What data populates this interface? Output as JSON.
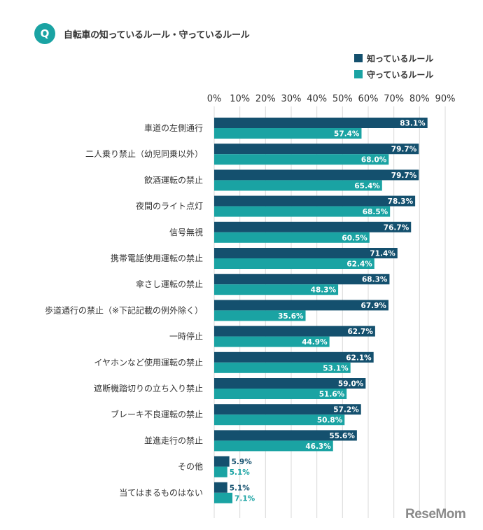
{
  "header": {
    "q_badge": "Q",
    "title": "自転車の知っているルール・守っているルール"
  },
  "watermark": "ReseMom",
  "colors": {
    "series_known": "#14506e",
    "series_followed": "#1aa3a3",
    "grid": "#d9d9d9",
    "text": "#333333"
  },
  "chart_data": {
    "type": "bar",
    "orientation": "horizontal",
    "title": "自転車の知っているルール・守っているルール",
    "categories": [
      "車道の左側通行",
      "二人乗り禁止（幼児同乗以外）",
      "飲酒運転の禁止",
      "夜間のライト点灯",
      "信号無視",
      "携帯電話使用運転の禁止",
      "傘さし運転の禁止",
      "歩道通行の禁止（※下記記載の例外除く）",
      "一時停止",
      "イヤホンなど使用運転の禁止",
      "遮断機踏切りの立ち入り禁止",
      "ブレーキ不良運転の禁止",
      "並進走行の禁止",
      "その他",
      "当てはまるものはない"
    ],
    "series": [
      {
        "name": "知っているルール",
        "values": [
          83.1,
          79.7,
          79.7,
          78.3,
          76.7,
          71.4,
          68.3,
          67.9,
          62.7,
          62.1,
          59.0,
          57.2,
          55.6,
          5.9,
          5.1
        ]
      },
      {
        "name": "守っているルール",
        "values": [
          57.4,
          68.0,
          65.4,
          68.5,
          60.5,
          62.4,
          48.3,
          35.6,
          44.9,
          53.1,
          51.6,
          50.8,
          46.3,
          5.1,
          7.1
        ]
      }
    ],
    "xlim": [
      0,
      90
    ],
    "ticks": [
      0,
      10,
      20,
      30,
      40,
      50,
      60,
      70,
      80,
      90
    ],
    "tick_labels": [
      "0%",
      "10%",
      "20%",
      "30%",
      "40%",
      "50%",
      "60%",
      "70%",
      "80%",
      "90%"
    ],
    "value_labels": [
      [
        "83.1%",
        "79.7%",
        "79.7%",
        "78.3%",
        "76.7%",
        "71.4%",
        "68.3%",
        "67.9%",
        "62.7%",
        "62.1%",
        "59.0%",
        "57.2%",
        "55.6%",
        "5.9%",
        "5.1%"
      ],
      [
        "57.4%",
        "68.0%",
        "65.4%",
        "68.5%",
        "60.5%",
        "62.4%",
        "48.3%",
        "35.6%",
        "44.9%",
        "53.1%",
        "51.6%",
        "50.8%",
        "46.3%",
        "5.1%",
        "7.1%"
      ]
    ],
    "legend_position": "top-right",
    "grid": true
  }
}
